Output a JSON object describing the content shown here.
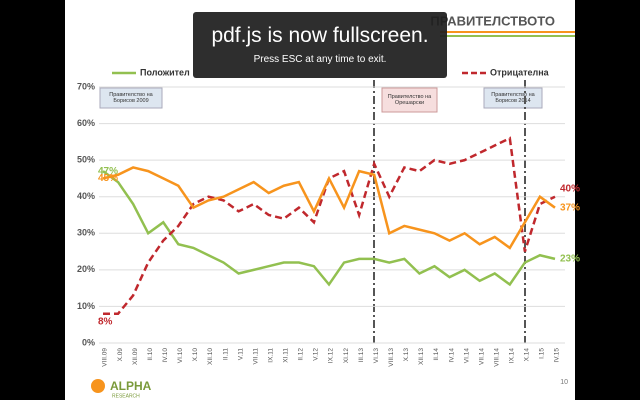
{
  "slide_title": "ПРАВИТЕЛСТВОТО",
  "page_number": "10",
  "logo": {
    "name": "ALPHA",
    "sub": "RESEARCH"
  },
  "callouts": [
    "Правителство на Борисов 2009",
    "Правителство на Орешарски",
    "Правителство на Борисов 2014"
  ],
  "fullscreen_notice": {
    "title": "pdf.js is now fullscreen.",
    "hint": "Press ESC at any time to exit."
  },
  "chart_data": {
    "type": "line",
    "categories": [
      "VIII.09",
      "X.09",
      "XII.09",
      "II.10",
      "IV.10",
      "VI.10",
      "X.10",
      "XII.10",
      "II.11",
      "V.11",
      "VII.11",
      "IX.11",
      "XI.11",
      "II.12",
      "V.12",
      "IX.12",
      "XI.12",
      "III.13",
      "VI.13",
      "VIII.13",
      "X.13",
      "XII.13",
      "II.14",
      "IV.14",
      "VI.14",
      "VII.14",
      "VIII.14",
      "IX.14",
      "X.14",
      "I.15",
      "IV.15"
    ],
    "series": [
      {
        "name": "Положител",
        "color": "#92c050",
        "dash": false,
        "first_label": "47%",
        "last_label": "23%",
        "values": [
          47,
          44,
          38,
          30,
          33,
          27,
          26,
          24,
          22,
          19,
          20,
          21,
          22,
          22,
          21,
          16,
          22,
          23,
          23,
          22,
          23,
          19,
          21,
          18,
          20,
          17,
          19,
          16,
          22,
          24,
          23
        ]
      },
      {
        "name": "Отрицателна",
        "color": "#c0282d",
        "dash": true,
        "first_label": "8%",
        "last_label": "40%",
        "values": [
          8,
          8,
          13,
          22,
          28,
          32,
          38,
          40,
          39,
          36,
          38,
          35,
          34,
          37,
          33,
          45,
          47,
          35,
          49,
          40,
          48,
          47,
          50,
          49,
          50,
          52,
          54,
          56,
          25,
          38,
          40
        ]
      },
      {
        "color": "#f7941d",
        "dash": false,
        "first_label": "45%",
        "last_label": "37%",
        "values": [
          45,
          46,
          48,
          47,
          45,
          43,
          37,
          39,
          40,
          42,
          44,
          41,
          43,
          44,
          36,
          45,
          37,
          47,
          46,
          30,
          32,
          31,
          30,
          28,
          30,
          27,
          29,
          26,
          33,
          40,
          37
        ]
      }
    ],
    "ylim": [
      0,
      70
    ],
    "yticks": [
      {
        "value": 0,
        "label": "0%"
      },
      {
        "value": 10,
        "label": "10%"
      },
      {
        "value": 20,
        "label": "20%"
      },
      {
        "value": 30,
        "label": "30%"
      },
      {
        "value": 40,
        "label": "40%"
      },
      {
        "value": 50,
        "label": "50%"
      },
      {
        "value": 60,
        "label": "60%"
      },
      {
        "value": 70,
        "label": "70%"
      }
    ],
    "grid": true
  }
}
